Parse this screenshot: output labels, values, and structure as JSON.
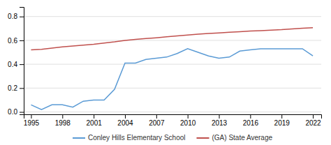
{
  "chart_data": {
    "type": "line",
    "x": [
      1995,
      1996,
      1997,
      1998,
      1999,
      2000,
      2001,
      2002,
      2003,
      2004,
      2005,
      2006,
      2007,
      2008,
      2009,
      2010,
      2011,
      2012,
      2013,
      2014,
      2015,
      2016,
      2017,
      2018,
      2019,
      2020,
      2021,
      2022
    ],
    "series": [
      {
        "name": "Conley Hills Elementary School",
        "color": "#5b9bd5",
        "values": [
          0.06,
          0.02,
          0.06,
          0.06,
          0.04,
          0.09,
          0.1,
          0.1,
          0.19,
          0.41,
          0.41,
          0.44,
          0.45,
          0.46,
          0.49,
          0.53,
          0.5,
          0.47,
          0.45,
          0.46,
          0.51,
          0.52,
          0.53,
          0.53,
          0.53,
          0.53,
          0.53,
          0.47
        ]
      },
      {
        "name": "(GA) State Average",
        "color": "#c0504d",
        "values": [
          0.52,
          0.525,
          0.535,
          0.545,
          0.553,
          0.56,
          0.568,
          0.578,
          0.588,
          0.6,
          0.608,
          0.615,
          0.622,
          0.63,
          0.638,
          0.645,
          0.652,
          0.658,
          0.663,
          0.668,
          0.673,
          0.678,
          0.682,
          0.686,
          0.69,
          0.696,
          0.702,
          0.706
        ]
      }
    ],
    "xlim": [
      1994.3,
      2022.8
    ],
    "ylim": [
      -0.02,
      0.88
    ],
    "xticks": [
      1995,
      1998,
      2001,
      2004,
      2007,
      2010,
      2013,
      2016,
      2019,
      2022
    ],
    "yticks": [
      {
        "value": 0,
        "label": "0.0"
      },
      0.2,
      0.4,
      0.6,
      0.8
    ],
    "grid": true,
    "legend": "bottom"
  }
}
